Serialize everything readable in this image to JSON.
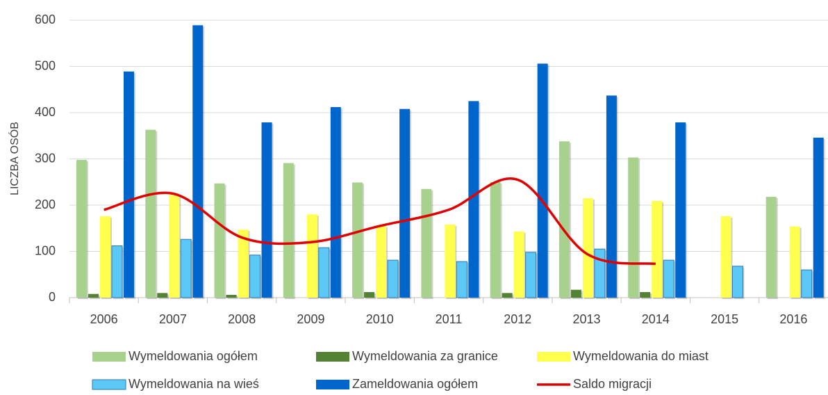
{
  "chart_data": {
    "type": "bar",
    "y_label": "LICZBA OSÓB",
    "categories": [
      "2006",
      "2007",
      "2008",
      "2009",
      "2010",
      "2011",
      "2012",
      "2013",
      "2014",
      "2015",
      "2016"
    ],
    "ylim": [
      0,
      600
    ],
    "yticks": [
      0,
      100,
      200,
      300,
      400,
      500,
      600
    ],
    "grid": true,
    "series": [
      {
        "name": "Wymeldowania ogółem",
        "color": "#a9d18e",
        "values": [
          298,
          363,
          247,
          291,
          249,
          235,
          250,
          338,
          303,
          null,
          218
        ]
      },
      {
        "name": "Wymeldowania za granice",
        "color": "#548235",
        "values": [
          8,
          10,
          6,
          null,
          12,
          null,
          10,
          17,
          12,
          null,
          null
        ]
      },
      {
        "name": "Wymeldowania do miast",
        "color": "#ffff4d",
        "values": [
          176,
          222,
          147,
          180,
          155,
          158,
          143,
          215,
          209,
          176,
          154
        ]
      },
      {
        "name": "Wymeldowania na wieś",
        "color": "#5bc8f5",
        "values": [
          112,
          126,
          92,
          108,
          81,
          78,
          98,
          105,
          81,
          68,
          60
        ]
      },
      {
        "name": "Zameldowania ogółem",
        "color": "#0066cc",
        "values": [
          489,
          589,
          379,
          412,
          408,
          425,
          506,
          437,
          379,
          null,
          346
        ]
      },
      {
        "name": "Saldo migracji",
        "type": "line",
        "color": "#e00000",
        "values": [
          190,
          225,
          130,
          120,
          155,
          190,
          255,
          95,
          73,
          null,
          null
        ]
      }
    ]
  }
}
